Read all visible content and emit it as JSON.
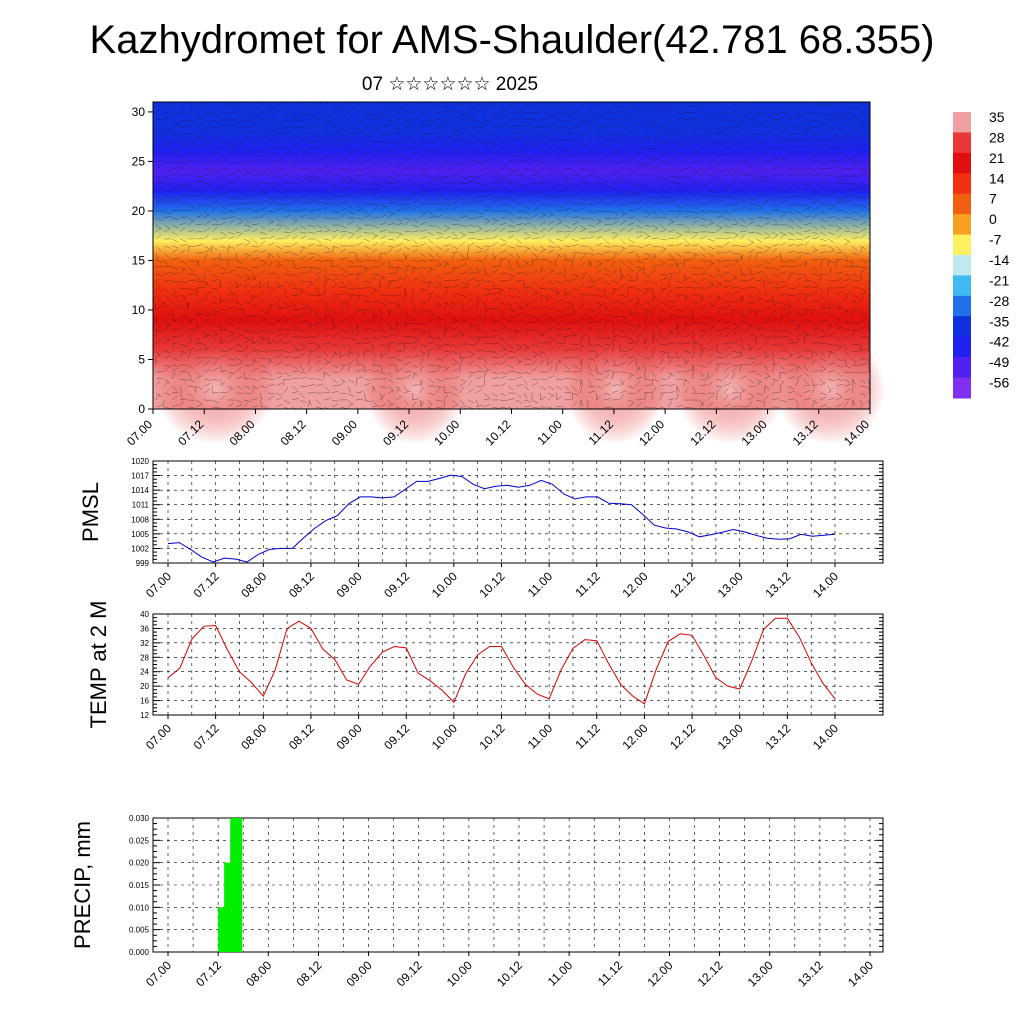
{
  "title": "Kazhydromet for AMS-Shaulder(42.781 68.355)",
  "subtitle": "07 ☆☆☆☆☆☆ 2025",
  "time_ticks": [
    "07.00",
    "07.12",
    "08.00",
    "08.12",
    "09.00",
    "09.12",
    "10.00",
    "10.12",
    "11.00",
    "11.12",
    "12.00",
    "12.12",
    "13.00",
    "13.12",
    "14.00"
  ],
  "chart_data": [
    {
      "type": "heatmap",
      "title": "",
      "yticks": [
        0,
        5,
        10,
        15,
        20,
        25,
        30
      ],
      "ylim": [
        0,
        31
      ],
      "colorbar": {
        "labels": [
          "35",
          "28",
          "21",
          "14",
          "7",
          "0",
          "-7",
          "-14",
          "-21",
          "-28",
          "-35",
          "-42",
          "-49",
          "-56"
        ],
        "colors": [
          "#f0a0a0",
          "#e83838",
          "#e01010",
          "#f03010",
          "#f06010",
          "#f8a020",
          "#fff060",
          "#c0e8f0",
          "#40b8f0",
          "#2070e8",
          "#1030e0",
          "#2020f0",
          "#5020f0",
          "#8030f0"
        ]
      },
      "profile": {
        "heights": [
          0,
          3,
          6,
          9,
          12,
          15,
          17,
          20,
          22,
          24,
          26,
          28,
          30,
          31
        ],
        "values": [
          35,
          30,
          21,
          17,
          10,
          0,
          -10,
          -30,
          -45,
          -56,
          -48,
          -40,
          -40,
          -40
        ]
      }
    },
    {
      "type": "line",
      "ylabel": "PMSL",
      "yticks": [
        999,
        1002,
        1005,
        1008,
        1011,
        1014,
        1017,
        1020
      ],
      "ylim": [
        999,
        1020
      ],
      "series": [
        {
          "color": "#0000cc",
          "values": [
            1003,
            1003.2,
            1001.8,
            1000.2,
            999.2,
            1000,
            999.8,
            999.2,
            1000.8,
            1001.8,
            1002,
            1002,
            1004.2,
            1006.2,
            1007.8,
            1008.8,
            1011.2,
            1012.6,
            1012.6,
            1012.4,
            1012.6,
            1014.2,
            1015.8,
            1015.8,
            1016.4,
            1017.1,
            1016.8,
            1015.2,
            1014.3,
            1014.8,
            1015,
            1014.6,
            1015,
            1016,
            1015.2,
            1013.2,
            1012.2,
            1012.6,
            1012.6,
            1011.3,
            1011.2,
            1011,
            1009,
            1006.8,
            1006.2,
            1006,
            1005.4,
            1004.4,
            1004.8,
            1005.3,
            1005.9,
            1005.4,
            1004.7,
            1004.1,
            1003.9,
            1004,
            1004.9,
            1004.5,
            1004.7,
            1004.9
          ]
        }
      ]
    },
    {
      "type": "line",
      "ylabel": "TEMP at 2 M",
      "yticks": [
        12,
        16,
        20,
        24,
        28,
        32,
        36,
        40
      ],
      "ylim": [
        12,
        40
      ],
      "series": [
        {
          "color": "#dd0000",
          "values": [
            22.3,
            25,
            33,
            36.6,
            36.8,
            30,
            24,
            21,
            17.2,
            24.5,
            36,
            38,
            36,
            30.3,
            27.4,
            21.7,
            20.5,
            25.6,
            29.4,
            31,
            30.6,
            23.6,
            21.5,
            18.9,
            15.5,
            23.5,
            28.7,
            31,
            31,
            25.2,
            20.5,
            17.8,
            16.5,
            24.5,
            30.5,
            32.9,
            32.6,
            26.2,
            20.5,
            17.3,
            15.1,
            24.7,
            32.4,
            34.5,
            34.1,
            28.4,
            22.3,
            20,
            19.2,
            26.9,
            35.7,
            38.8,
            38.8,
            33.6,
            26.5,
            20.7,
            16.5
          ]
        }
      ]
    },
    {
      "type": "bar",
      "ylabel": "PRECIP, mm",
      "yticks": [
        "0.000",
        "0.005",
        "0.010",
        "0.015",
        "0.020",
        "0.025",
        "0.030"
      ],
      "ylim": [
        0,
        0.03
      ],
      "bar_color": "#00ee00",
      "bars": [
        {
          "x": 1.0,
          "value": 0.01
        },
        {
          "x": 1.12,
          "value": 0.02
        },
        {
          "x": 1.24,
          "value": 0.03
        }
      ]
    }
  ]
}
